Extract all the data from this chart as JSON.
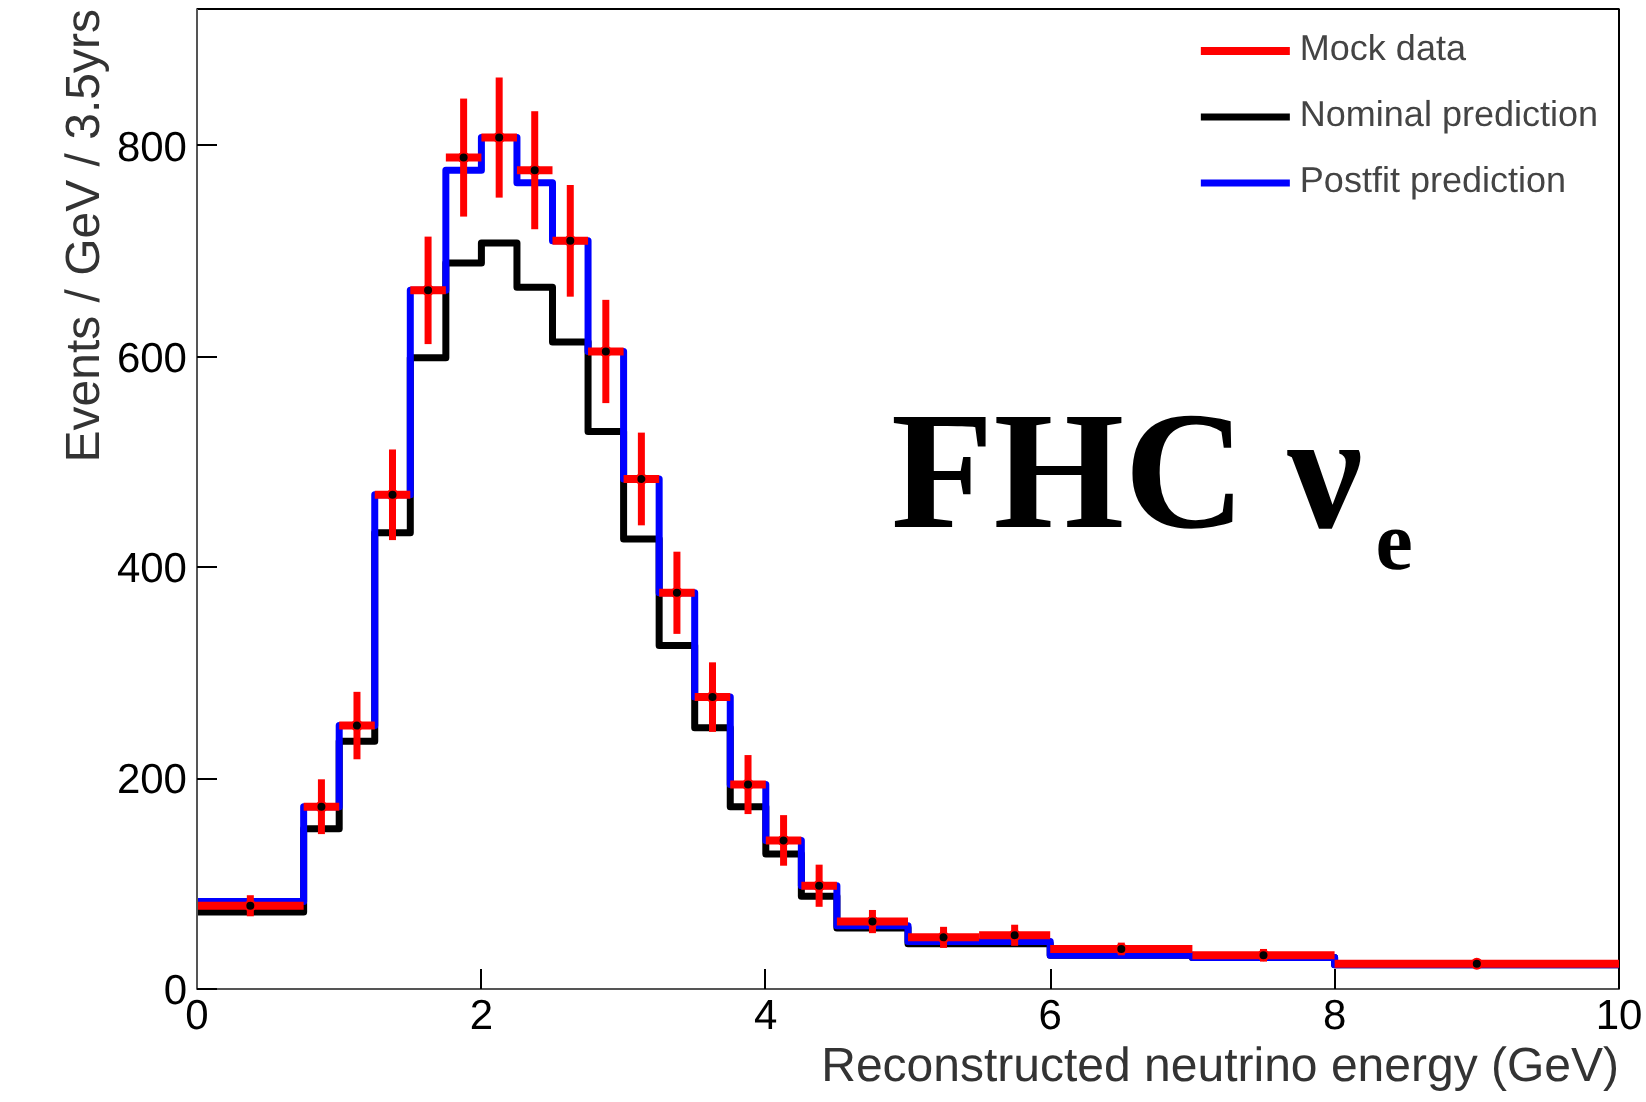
{
  "chart_data": {
    "type": "histogram",
    "xlabel": "Reconstructed neutrino energy (GeV)",
    "ylabel": "Events / GeV / 3.5yrs",
    "annotations": [
      "FHC ν$_{e}$"
    ],
    "bins": [
      0,
      0.75,
      1,
      1.25,
      1.5,
      1.75,
      2,
      2.25,
      2.5,
      2.75,
      3,
      3.25,
      3.5,
      3.75,
      4,
      4.25,
      4.5,
      5,
      5.5,
      6,
      7,
      8,
      10
    ],
    "series": [
      {
        "name": "Mock data",
        "type": "scatter",
        "color": "#ff0000",
        "marker": "circle",
        "x": [
          0.375,
          0.875,
          1.125,
          1.375,
          1.625,
          1.875,
          2.125,
          2.375,
          2.625,
          2.875,
          3.125,
          3.375,
          3.625,
          3.875,
          4.125,
          4.375,
          4.75,
          5.25,
          5.75,
          6.5,
          7.5,
          9
        ],
        "values": [
          79,
          173,
          250,
          469,
          663,
          789,
          808,
          777,
          710,
          605,
          484,
          376,
          277,
          194,
          141,
          98,
          64,
          49,
          51,
          38,
          32,
          24
        ],
        "xerrors": [
          0.375,
          0.125,
          0.125,
          0.125,
          0.125,
          0.125,
          0.125,
          0.125,
          0.125,
          0.125,
          0.125,
          0.125,
          0.125,
          0.125,
          0.125,
          0.125,
          0.25,
          0.25,
          0.25,
          0.5,
          0.5,
          1
        ],
        "errors": [
          10,
          26,
          32,
          43,
          51,
          56,
          57,
          56,
          53,
          49,
          44,
          39,
          33,
          28,
          24,
          20,
          11,
          10,
          10,
          6,
          6,
          3
        ]
      },
      {
        "name": "Nominal prediction",
        "color": "#000000",
        "values": [
          73,
          152,
          235,
          433,
          599,
          689,
          708,
          666,
          614,
          529,
          427,
          326,
          248,
          173,
          128,
          88,
          58,
          43,
          43,
          32,
          30,
          23
        ]
      },
      {
        "name": "Postfit prediction",
        "color": "#0000ff",
        "values": [
          83,
          173,
          250,
          469,
          663,
          777,
          808,
          765,
          710,
          605,
          484,
          376,
          277,
          194,
          141,
          98,
          60,
          45,
          45,
          32,
          30,
          23
        ]
      }
    ],
    "xlim": [
      0,
      10
    ],
    "ylim": [
      0,
      930
    ],
    "xticks": [
      0,
      2,
      4,
      6,
      8,
      10
    ],
    "yticks": [
      0,
      200,
      400,
      600,
      800
    ],
    "grid": false,
    "legend": "top right"
  }
}
